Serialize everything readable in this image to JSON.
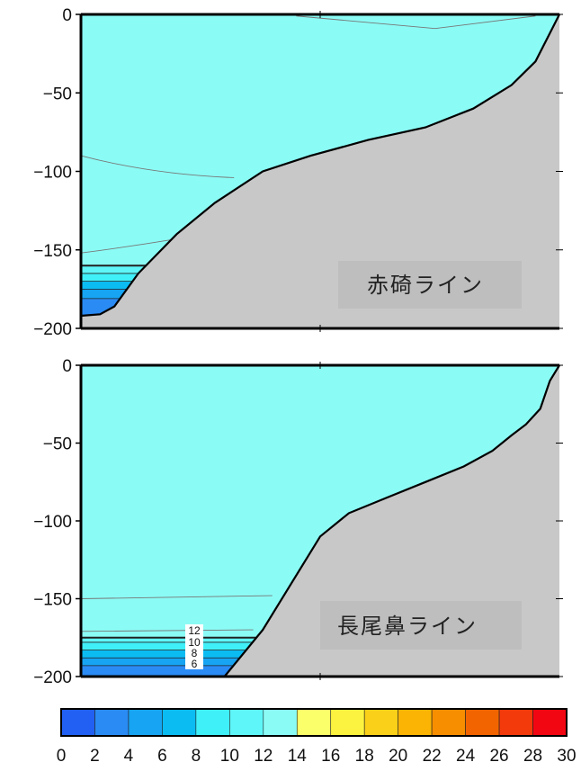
{
  "chart_data": [
    {
      "type": "heatmap",
      "subtype": "vertical section with bathymetry",
      "title": "",
      "xlabel": "",
      "ylabel": "",
      "ylim": [
        -200,
        0
      ],
      "yticks": [
        0,
        -50,
        -100,
        -150,
        -200
      ],
      "ytick_labels": [
        "0",
        "−50",
        "−100",
        "−150",
        "−200"
      ],
      "annotation": "赤碕ライン",
      "background_value_range": [
        12,
        14
      ],
      "colors": {
        "ocean": "#8bfbf5",
        "seafloor": "#c8c8c8",
        "frame": "#000000"
      },
      "layers": [
        {
          "from": -160,
          "to": -165,
          "range": [
            10,
            12
          ]
        },
        {
          "from": -165,
          "to": -170,
          "range": [
            8,
            10
          ]
        },
        {
          "from": -170,
          "to": -175,
          "range": [
            6,
            8
          ]
        },
        {
          "from": -175,
          "to": -181,
          "range": [
            4,
            6
          ]
        },
        {
          "from": -181,
          "to": -192,
          "range": [
            2,
            4
          ]
        }
      ],
      "bathymetry_profile": [
        [
          0.0,
          -192
        ],
        [
          0.04,
          -191
        ],
        [
          0.07,
          -186
        ],
        [
          0.12,
          -165
        ],
        [
          0.2,
          -140
        ],
        [
          0.28,
          -120
        ],
        [
          0.38,
          -100
        ],
        [
          0.48,
          -90
        ],
        [
          0.6,
          -80
        ],
        [
          0.72,
          -72
        ],
        [
          0.82,
          -60
        ],
        [
          0.9,
          -45
        ],
        [
          0.95,
          -30
        ],
        [
          0.98,
          -12
        ],
        [
          1.0,
          0
        ]
      ]
    },
    {
      "type": "heatmap",
      "subtype": "vertical section with bathymetry",
      "title": "",
      "xlabel": "",
      "ylabel": "",
      "ylim": [
        -200,
        0
      ],
      "yticks": [
        0,
        -50,
        -100,
        -150,
        -200
      ],
      "ytick_labels": [
        "0",
        "−50",
        "−100",
        "−150",
        "−200"
      ],
      "annotation": "長尾鼻ライン",
      "background_value_range": [
        12,
        14
      ],
      "contour_labels": [
        "12",
        "10",
        "8",
        "6"
      ],
      "colors": {
        "ocean": "#8bfbf5",
        "seafloor": "#c8c8c8",
        "frame": "#000000"
      },
      "layers": [
        {
          "from": -175,
          "to": -178,
          "range": [
            10,
            12
          ]
        },
        {
          "from": -178,
          "to": -183,
          "range": [
            8,
            10
          ]
        },
        {
          "from": -183,
          "to": -188,
          "range": [
            6,
            8
          ]
        },
        {
          "from": -188,
          "to": -193,
          "range": [
            4,
            6
          ]
        },
        {
          "from": -193,
          "to": -200,
          "range": [
            2,
            4
          ]
        }
      ],
      "bathymetry_profile": [
        [
          0.0,
          -200
        ],
        [
          0.3,
          -200
        ],
        [
          0.38,
          -170
        ],
        [
          0.44,
          -140
        ],
        [
          0.5,
          -110
        ],
        [
          0.56,
          -95
        ],
        [
          0.64,
          -85
        ],
        [
          0.72,
          -75
        ],
        [
          0.8,
          -65
        ],
        [
          0.86,
          -55
        ],
        [
          0.9,
          -45
        ],
        [
          0.93,
          -38
        ],
        [
          0.96,
          -28
        ],
        [
          0.98,
          -10
        ],
        [
          1.0,
          0
        ]
      ]
    }
  ],
  "colorbar": {
    "min": 0,
    "max": 30,
    "step": 2,
    "tick_labels": [
      "0",
      "2",
      "4",
      "6",
      "8",
      "10",
      "12",
      "14",
      "16",
      "18",
      "20",
      "22",
      "24",
      "26",
      "28",
      "30"
    ],
    "colors": [
      "#2160f2",
      "#2a8bf5",
      "#16a4f3",
      "#0bbcf3",
      "#3ff0f9",
      "#5ef6f8",
      "#8bfbf5",
      "#fbff6a",
      "#fbf33f",
      "#fbd018",
      "#fbb404",
      "#f78e00",
      "#f26400",
      "#f23a0b",
      "#f20612"
    ]
  }
}
